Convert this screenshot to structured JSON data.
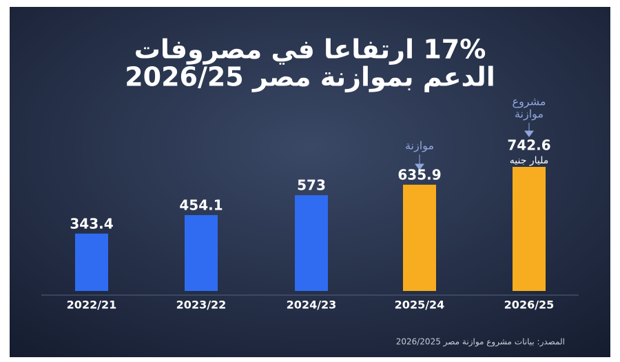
{
  "chart_data": {
    "type": "bar",
    "title": [
      "17% ارتفاعا في مصروفات",
      "الدعم بموازنة مصر 2026/25"
    ],
    "categories": [
      "2022/21",
      "2023/22",
      "2024/23",
      "2025/24",
      "2026/25"
    ],
    "values": [
      343.4,
      454.1,
      573,
      635.9,
      742.6
    ],
    "colors": [
      "#2f6cf2",
      "#2f6cf2",
      "#2f6cf2",
      "#f7ad1f",
      "#f7ad1f"
    ],
    "annotations": [
      "مشروع",
      "موازنة",
      "موازنة",
      "مليار جنيه"
    ],
    "source": "المصدر: بيانات مشروع موازنة مصر 2026/2025"
  }
}
